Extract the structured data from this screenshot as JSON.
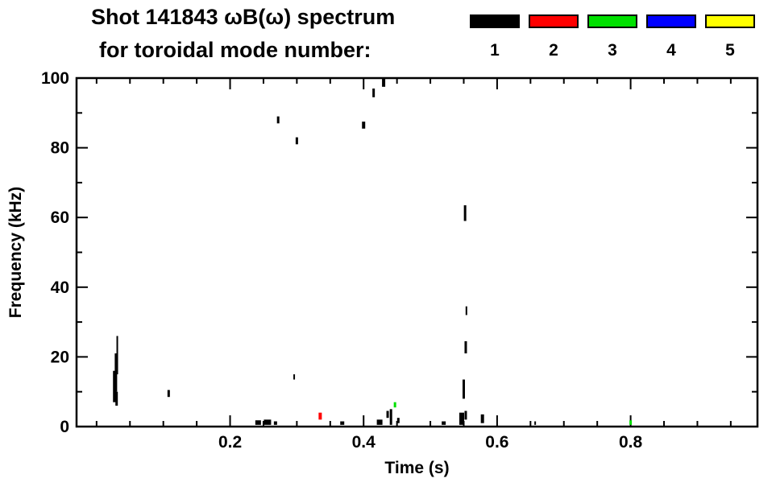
{
  "title": {
    "line1": "Shot 141843 ωB(ω) spectrum",
    "line2": "for toroidal mode number:"
  },
  "legend": {
    "modes": [
      {
        "label": "1",
        "color": "#000000"
      },
      {
        "label": "2",
        "color": "#ff0000"
      },
      {
        "label": "3",
        "color": "#00e000"
      },
      {
        "label": "4",
        "color": "#0000ff"
      },
      {
        "label": "5",
        "color": "#ffff00"
      }
    ]
  },
  "chart_data": {
    "type": "scatter",
    "title": "Shot 141843 ωB(ω) spectrum",
    "subtitle": "for toroidal mode number:",
    "xlabel": "Time (s)",
    "ylabel": "Frequency (kHz)",
    "xlim": [
      -0.03,
      0.99
    ],
    "ylim": [
      0,
      100
    ],
    "xticks": {
      "major": [
        0.2,
        0.4,
        0.6,
        0.8
      ],
      "minor_step": 0.05,
      "label_format": "0.0"
    },
    "yticks": {
      "major": [
        0,
        20,
        40,
        60,
        80,
        100
      ],
      "minor_step": 10
    },
    "grid": false,
    "legend_position": "top-right",
    "series": [
      {
        "name": "n=1",
        "color": "#000000",
        "segments": [
          [
            0.027,
            7,
            16,
            4
          ],
          [
            0.029,
            10,
            21,
            3
          ],
          [
            0.031,
            15,
            26,
            2
          ],
          [
            0.03,
            6,
            10,
            3
          ],
          [
            0.108,
            8.5,
            10.5,
            3
          ],
          [
            0.242,
            0.5,
            1.8,
            7
          ],
          [
            0.256,
            0.5,
            2.0,
            9
          ],
          [
            0.268,
            0.5,
            1.5,
            4
          ],
          [
            0.272,
            87,
            89,
            3
          ],
          [
            0.296,
            13.5,
            15,
            2
          ],
          [
            0.3,
            81,
            83,
            3
          ],
          [
            0.368,
            0.5,
            1.5,
            5
          ],
          [
            0.4,
            85.5,
            87.5,
            4
          ],
          [
            0.415,
            94.5,
            97,
            3
          ],
          [
            0.43,
            97.5,
            100,
            4
          ],
          [
            0.424,
            0.5,
            2,
            7
          ],
          [
            0.436,
            2.5,
            4.5,
            3
          ],
          [
            0.441,
            0.5,
            5,
            3
          ],
          [
            0.452,
            1,
            2.5,
            3
          ],
          [
            0.52,
            0.5,
            1.5,
            5
          ],
          [
            0.547,
            0.5,
            4,
            6
          ],
          [
            0.553,
            2,
            4.5,
            3
          ],
          [
            0.55,
            8,
            13.5,
            3
          ],
          [
            0.553,
            21,
            24.5,
            3
          ],
          [
            0.554,
            32,
            34.5,
            2
          ],
          [
            0.552,
            59,
            63.5,
            3
          ],
          [
            0.578,
            1,
            3.5,
            4
          ],
          [
            0.657,
            0.5,
            1.5,
            2
          ]
        ]
      },
      {
        "name": "n=2",
        "color": "#ff0000",
        "segments": [
          [
            0.335,
            2,
            4,
            4
          ]
        ]
      },
      {
        "name": "n=3",
        "color": "#00e000",
        "segments": [
          [
            0.447,
            5.5,
            7,
            3
          ],
          [
            0.8,
            0.5,
            1.8,
            3
          ]
        ]
      },
      {
        "name": "n=4",
        "color": "#0000ff",
        "segments": []
      },
      {
        "name": "n=5",
        "color": "#ffff00",
        "segments": []
      }
    ]
  }
}
